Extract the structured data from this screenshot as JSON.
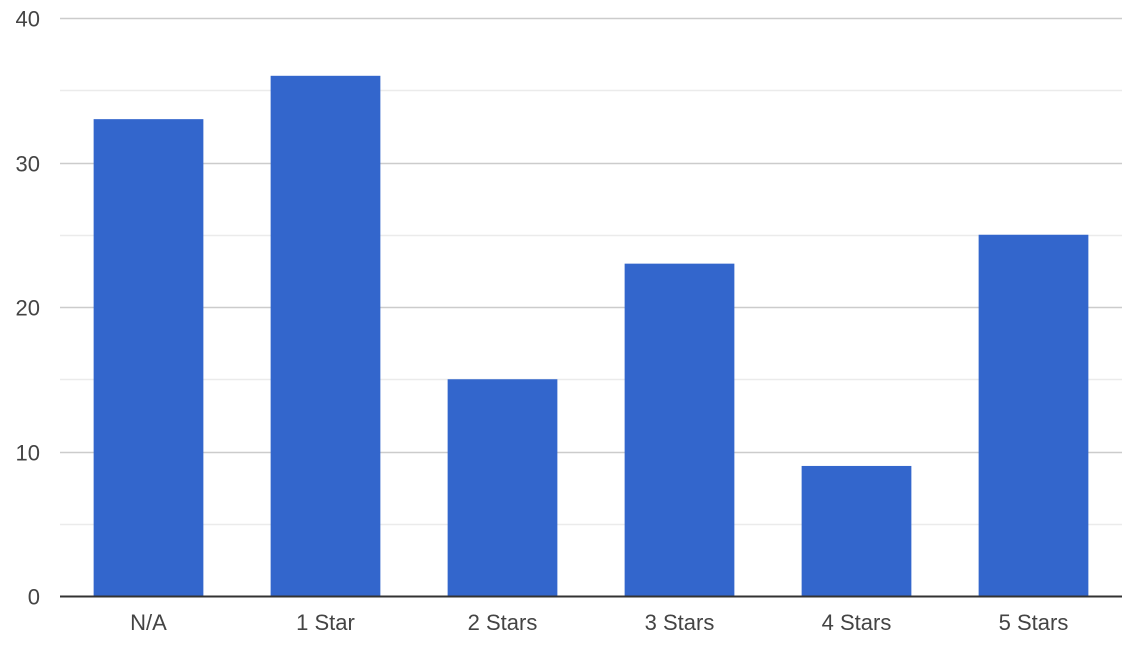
{
  "chart_data": {
    "type": "bar",
    "title": "",
    "xlabel": "",
    "ylabel": "",
    "categories": [
      "N/A",
      "1 Star",
      "2 Stars",
      "3 Stars",
      "4 Stars",
      "5 Stars"
    ],
    "values": [
      33,
      36,
      15,
      23,
      9,
      25
    ],
    "ylim": [
      0,
      40
    ],
    "yticks": [
      "0",
      "10",
      "20",
      "30",
      "40"
    ],
    "yticks_numeric": [
      0,
      10,
      20,
      30,
      40
    ],
    "minor_gridlines": [
      5,
      15,
      25,
      35
    ],
    "grid": true,
    "legend": "none",
    "bar_color": "#3366CC",
    "gridline_color": "#cccccc",
    "minor_gridline_color": "#ebebeb",
    "axis_color": "#333333",
    "label_color": "#444444"
  }
}
